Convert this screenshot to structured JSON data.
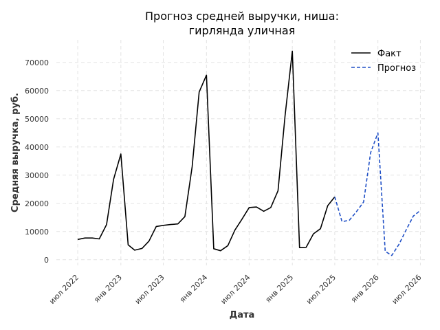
{
  "chart_data": {
    "type": "line",
    "title": [
      "Прогноз средней выручки, ниша:",
      "гирлянда уличная"
    ],
    "xlabel": "Дата",
    "ylabel": "Средняя выручка, руб.",
    "ylim": [
      -2000,
      78000
    ],
    "xlim": [
      "2022-04-01",
      "2026-08-01"
    ],
    "yticks": [
      0,
      10000,
      20000,
      30000,
      40000,
      50000,
      60000,
      70000
    ],
    "xticks": [
      {
        "date": "2022-07-01",
        "label": "июл 2022"
      },
      {
        "date": "2023-01-01",
        "label": "янв 2023"
      },
      {
        "date": "2023-07-01",
        "label": "июл 2023"
      },
      {
        "date": "2024-01-01",
        "label": "янв 2024"
      },
      {
        "date": "2024-07-01",
        "label": "июл 2024"
      },
      {
        "date": "2025-01-01",
        "label": "янв 2025"
      },
      {
        "date": "2025-07-01",
        "label": "июл 2025"
      },
      {
        "date": "2026-01-01",
        "label": "янв 2026"
      },
      {
        "date": "2026-07-01",
        "label": "июл 2026"
      }
    ],
    "grid": true,
    "legend_position": "top-right",
    "series": [
      {
        "name": "Факт",
        "color": "#000000",
        "style": "solid",
        "x": [
          "2022-07-01",
          "2022-08-01",
          "2022-09-01",
          "2022-10-01",
          "2022-11-01",
          "2022-12-01",
          "2023-01-01",
          "2023-02-01",
          "2023-03-01",
          "2023-04-01",
          "2023-05-01",
          "2023-06-01",
          "2023-07-01",
          "2023-08-01",
          "2023-09-01",
          "2023-10-01",
          "2023-11-01",
          "2023-12-01",
          "2024-01-01",
          "2024-02-01",
          "2024-03-01",
          "2024-04-01",
          "2024-05-01",
          "2024-06-01",
          "2024-07-01",
          "2024-08-01",
          "2024-09-01",
          "2024-10-01",
          "2024-11-01",
          "2024-12-01",
          "2025-01-01",
          "2025-02-01",
          "2025-03-01",
          "2025-04-01",
          "2025-05-01",
          "2025-06-01",
          "2025-07-01"
        ],
        "y": [
          7200,
          7700,
          7700,
          7400,
          12500,
          28500,
          37500,
          5300,
          3400,
          4000,
          6600,
          11800,
          12200,
          12500,
          12700,
          15300,
          33000,
          59500,
          65500,
          3900,
          3200,
          5000,
          10500,
          14500,
          18500,
          18700,
          17200,
          18500,
          24500,
          51000,
          74000,
          4300,
          4400,
          9200,
          11000,
          19200,
          22300
        ]
      },
      {
        "name": "Прогноз",
        "color": "#1f4fc6",
        "style": "dashed",
        "x": [
          "2025-07-01",
          "2025-08-01",
          "2025-09-01",
          "2025-10-01",
          "2025-11-01",
          "2025-12-01",
          "2026-01-01",
          "2026-02-01",
          "2026-03-01",
          "2026-04-01",
          "2026-05-01",
          "2026-06-01",
          "2026-07-01"
        ],
        "y": [
          22300,
          13500,
          14000,
          17000,
          20500,
          38000,
          45000,
          3000,
          1500,
          5500,
          10500,
          15500,
          17500
        ]
      }
    ]
  }
}
